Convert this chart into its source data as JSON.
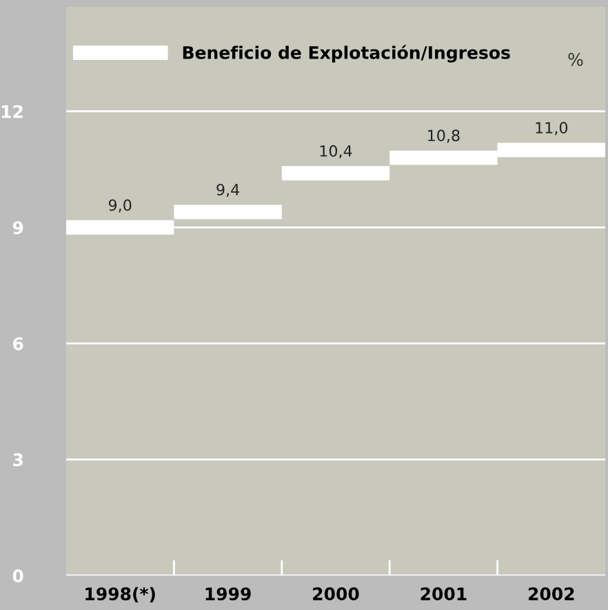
{
  "chart_data": {
    "type": "step",
    "ylabel": "%",
    "categories": [
      "1998(*)",
      "1999",
      "2000",
      "2001",
      "2002"
    ],
    "series": [
      {
        "name": "Beneficio de Explotación/Ingresos",
        "color": "#ffffff",
        "values": [
          9.0,
          9.4,
          10.4,
          10.8,
          11.0
        ],
        "value_labels": [
          "9,0",
          "9,4",
          "10,4",
          "10,8",
          "11,0"
        ]
      }
    ],
    "ylim": [
      0,
      14.7
    ],
    "yticks": [
      0,
      3,
      6,
      9,
      12
    ],
    "grid": "y",
    "legend": "top left"
  }
}
